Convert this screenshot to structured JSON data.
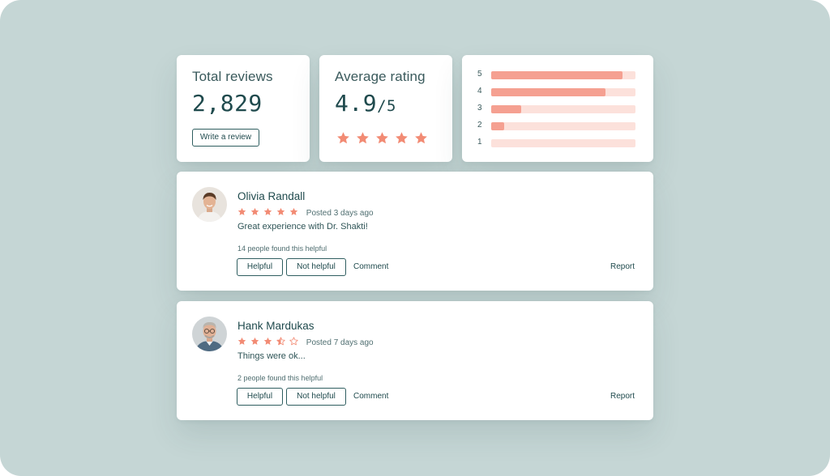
{
  "colors": {
    "background": "#c5d6d5",
    "accent": "#f28b74",
    "bar_fill": "#f5a091",
    "bar_track": "#fce1db",
    "text": "#1f4a4d"
  },
  "total_reviews": {
    "title": "Total reviews",
    "value": "2,829",
    "write_button": "Write a review"
  },
  "average_rating": {
    "title": "Average rating",
    "value": "4.9",
    "scale": "/5",
    "stars": 5
  },
  "distribution": [
    {
      "label": "5",
      "fraction": 0.91
    },
    {
      "label": "4",
      "fraction": 0.79
    },
    {
      "label": "3",
      "fraction": 0.21
    },
    {
      "label": "2",
      "fraction": 0.09
    },
    {
      "label": "1",
      "fraction": 0.0
    }
  ],
  "reviews": [
    {
      "name": "Olivia Randall",
      "rating": 5,
      "posted": "Posted 3 days ago",
      "text": "Great experience with Dr. Shakti!",
      "helpful_count": "14 people found this helpful",
      "avatar": "avatar-young-man"
    },
    {
      "name": "Hank Mardukas",
      "rating": 3.5,
      "posted": "Posted 7 days ago",
      "text": "Things were ok...",
      "helpful_count": "2 people found this helpful",
      "avatar": "avatar-older-man-glasses"
    }
  ],
  "actions": {
    "helpful": "Helpful",
    "not_helpful": "Not helpful",
    "comment": "Comment",
    "report": "Report"
  }
}
